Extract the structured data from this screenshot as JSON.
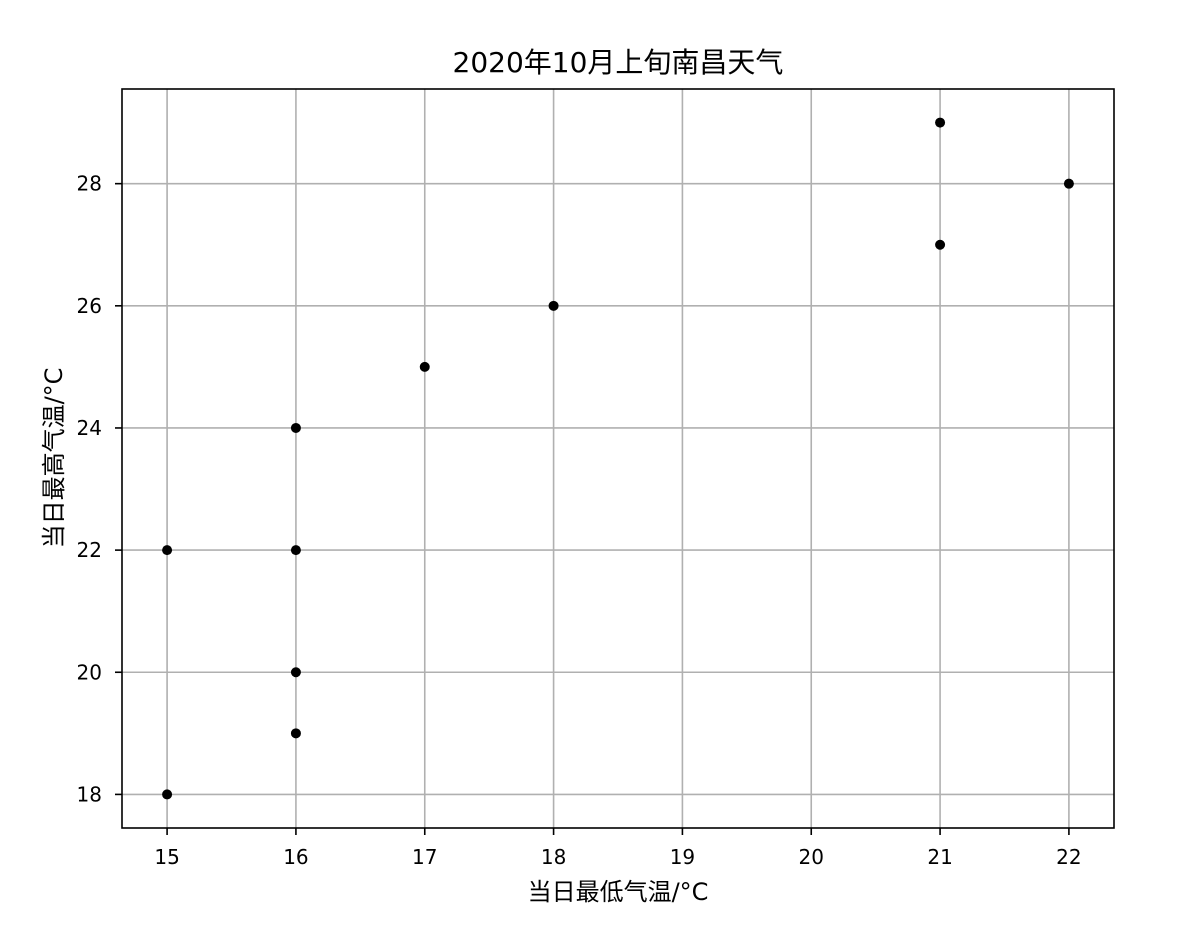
{
  "chart_data": {
    "type": "scatter",
    "title": "2020年10月上旬南昌天气",
    "xlabel": "当日最低气温/°C",
    "ylabel": "当日最高气温/°C",
    "xlim": [
      14.65,
      22.35
    ],
    "ylim": [
      17.45,
      29.55
    ],
    "xticks": [
      15,
      16,
      17,
      18,
      19,
      20,
      21,
      22
    ],
    "yticks": [
      18,
      20,
      22,
      24,
      26,
      28
    ],
    "grid": true,
    "marker_color": "#000000",
    "grid_color": "#b0b0b0",
    "points": [
      {
        "x": 15,
        "y": 22
      },
      {
        "x": 15,
        "y": 18
      },
      {
        "x": 16,
        "y": 24
      },
      {
        "x": 16,
        "y": 22
      },
      {
        "x": 16,
        "y": 20
      },
      {
        "x": 16,
        "y": 19
      },
      {
        "x": 17,
        "y": 25
      },
      {
        "x": 18,
        "y": 26
      },
      {
        "x": 21,
        "y": 29
      },
      {
        "x": 21,
        "y": 27
      },
      {
        "x": 22,
        "y": 28
      }
    ]
  }
}
